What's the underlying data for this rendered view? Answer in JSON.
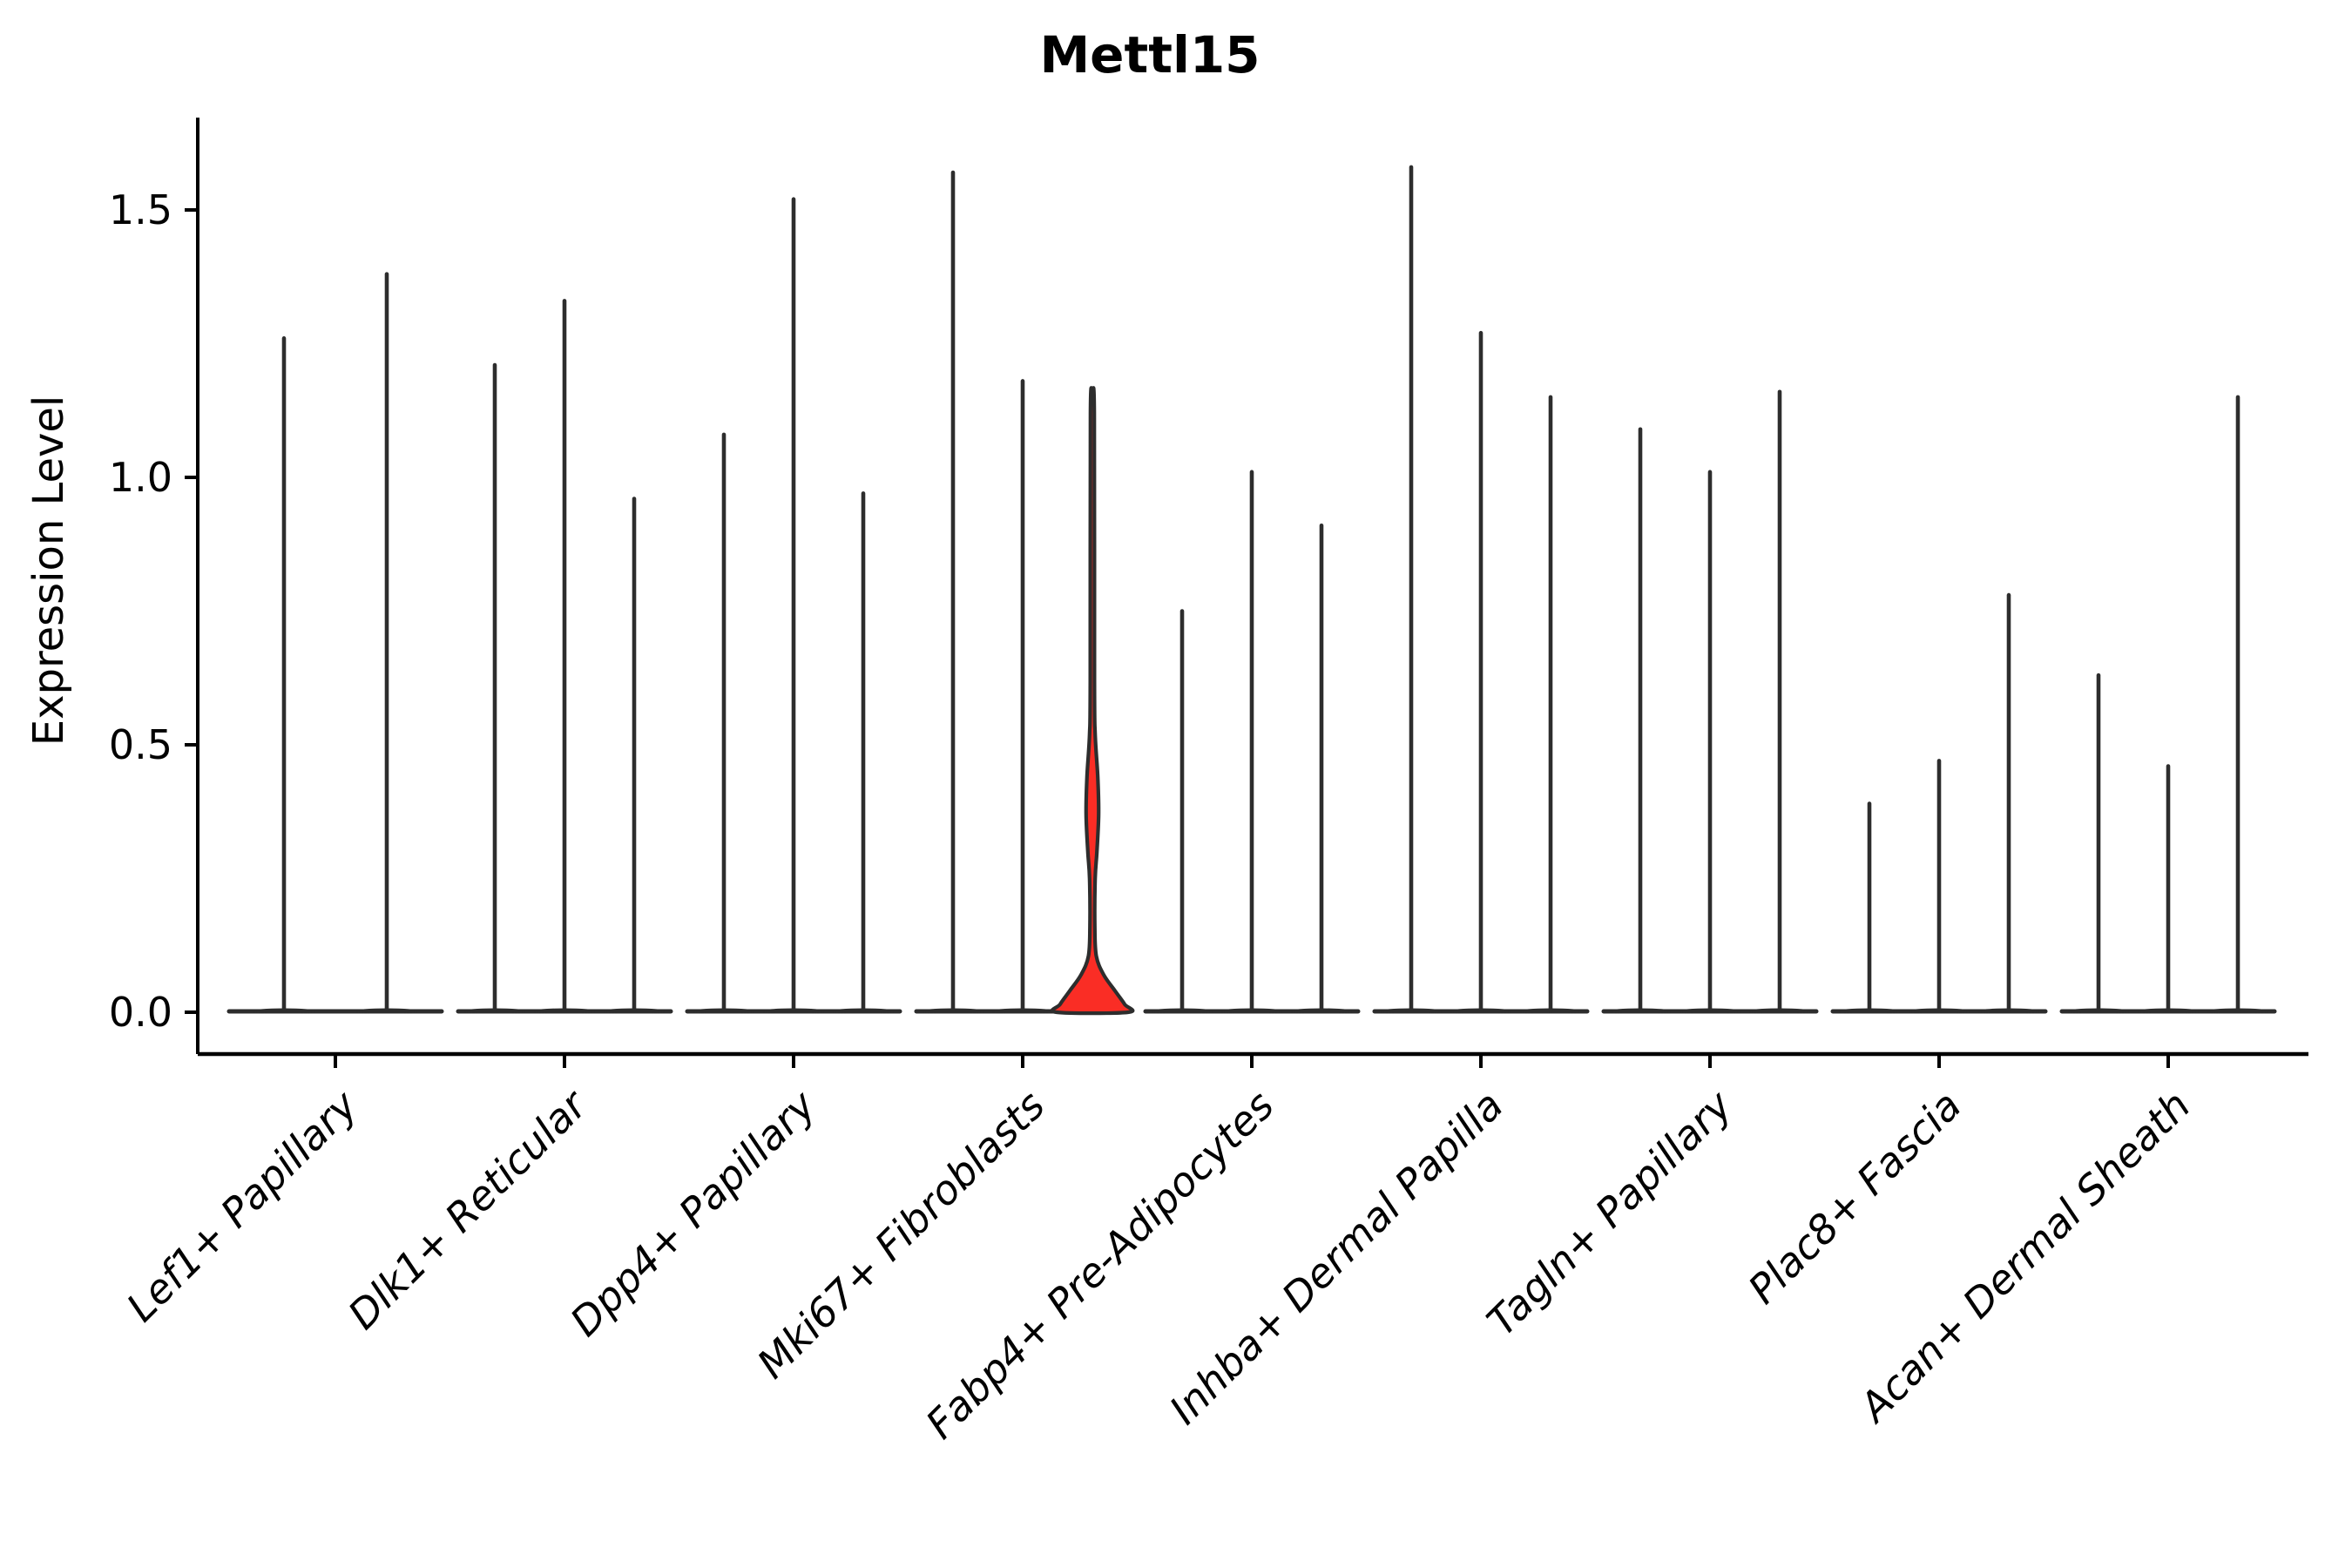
{
  "chart_data": {
    "type": "violin",
    "title": "Mettl15",
    "ylabel": "Expression Level",
    "ylim": [
      0,
      1.66
    ],
    "grid": false,
    "legend": "none",
    "yticks": [
      {
        "value": 0,
        "label": "0.0"
      },
      {
        "value": 0.5,
        "label": "0.5"
      },
      {
        "value": 1,
        "label": "1.0"
      },
      {
        "value": 1.5,
        "label": "1.5"
      }
    ],
    "categories": [
      "Lef1+ Papillary",
      "Dlk1+ Reticular",
      "Dpp4+ Papillary",
      "Mki67+ Fibroblasts",
      "Fabp4+ Pre-Adipocytes",
      "Inhba+ Dermal Papilla",
      "Tagln+ Papillary",
      "Plac8+ Fascia",
      "Acan+ Dermal Sheath"
    ],
    "groups": [
      {
        "label": "Lef1+ Papillary",
        "violins": [
          {
            "max": 1.26
          },
          {
            "max": 1.38
          }
        ]
      },
      {
        "label": "Dlk1+ Reticular",
        "violins": [
          {
            "max": 1.21
          },
          {
            "max": 1.33
          },
          {
            "max": 0.96
          }
        ]
      },
      {
        "label": "Dpp4+ Papillary",
        "violins": [
          {
            "max": 1.08
          },
          {
            "max": 1.52
          },
          {
            "max": 0.97
          }
        ]
      },
      {
        "label": "Mki67+ Fibroblasts",
        "violins": [
          {
            "max": 1.57
          },
          {
            "max": 1.18
          },
          {
            "max": 1.15,
            "highlight": true
          }
        ]
      },
      {
        "label": "Fabp4+ Pre-Adipocytes",
        "violins": [
          {
            "max": 0.75
          },
          {
            "max": 1.01
          },
          {
            "max": 0.91
          }
        ]
      },
      {
        "label": "Inhba+ Dermal Papilla",
        "violins": [
          {
            "max": 1.58
          },
          {
            "max": 1.27
          },
          {
            "max": 1.15
          }
        ]
      },
      {
        "label": "Tagln+ Papillary",
        "violins": [
          {
            "max": 1.09
          },
          {
            "max": 1.01
          },
          {
            "max": 1.16
          }
        ]
      },
      {
        "label": "Plac8+ Fascia",
        "violins": [
          {
            "max": 0.39
          },
          {
            "max": 0.47
          },
          {
            "max": 0.78
          }
        ]
      },
      {
        "label": "Acan+ Dermal Sheath",
        "violins": [
          {
            "max": 0.63
          },
          {
            "max": 0.46
          },
          {
            "max": 1.15
          }
        ]
      }
    ],
    "highlight_profile": [
      [
        1.15,
        0.0
      ],
      [
        1.12,
        2.2
      ],
      [
        0.62,
        2.4
      ],
      [
        0.52,
        3.2
      ],
      [
        0.44,
        6.2
      ],
      [
        0.37,
        7.2
      ],
      [
        0.3,
        5.2
      ],
      [
        0.25,
        3.2
      ],
      [
        0.16,
        2.8
      ],
      [
        0.105,
        4.5
      ],
      [
        0.07,
        13
      ],
      [
        0.04,
        26
      ],
      [
        0.015,
        37
      ],
      [
        0.0,
        41
      ]
    ],
    "colors": {
      "violin_stroke": "#2d2d2d",
      "highlight_fill": "#fa2d25",
      "axis": "#000000",
      "text": "#000000",
      "background": "#ffffff"
    }
  }
}
